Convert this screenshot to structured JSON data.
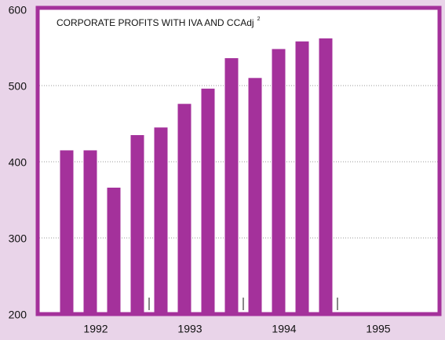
{
  "chart_data": {
    "type": "bar",
    "title": "CORPORATE PROFITS WITH IVA AND CCAdj",
    "title_note": "2",
    "categories": [
      null,
      null,
      null,
      null,
      null,
      null,
      null,
      null,
      null,
      null,
      null,
      null,
      null,
      null,
      null,
      null
    ],
    "year_labels": [
      "1992",
      "1993",
      "1994",
      "1995"
    ],
    "values": [
      415,
      415,
      366,
      435,
      445,
      476,
      496,
      536,
      510,
      548,
      558,
      562,
      null,
      null,
      null,
      null
    ],
    "color": "#a4319b",
    "ylim": [
      200,
      600
    ],
    "yticks": [
      200,
      300,
      400,
      500,
      600
    ],
    "grid": true
  }
}
